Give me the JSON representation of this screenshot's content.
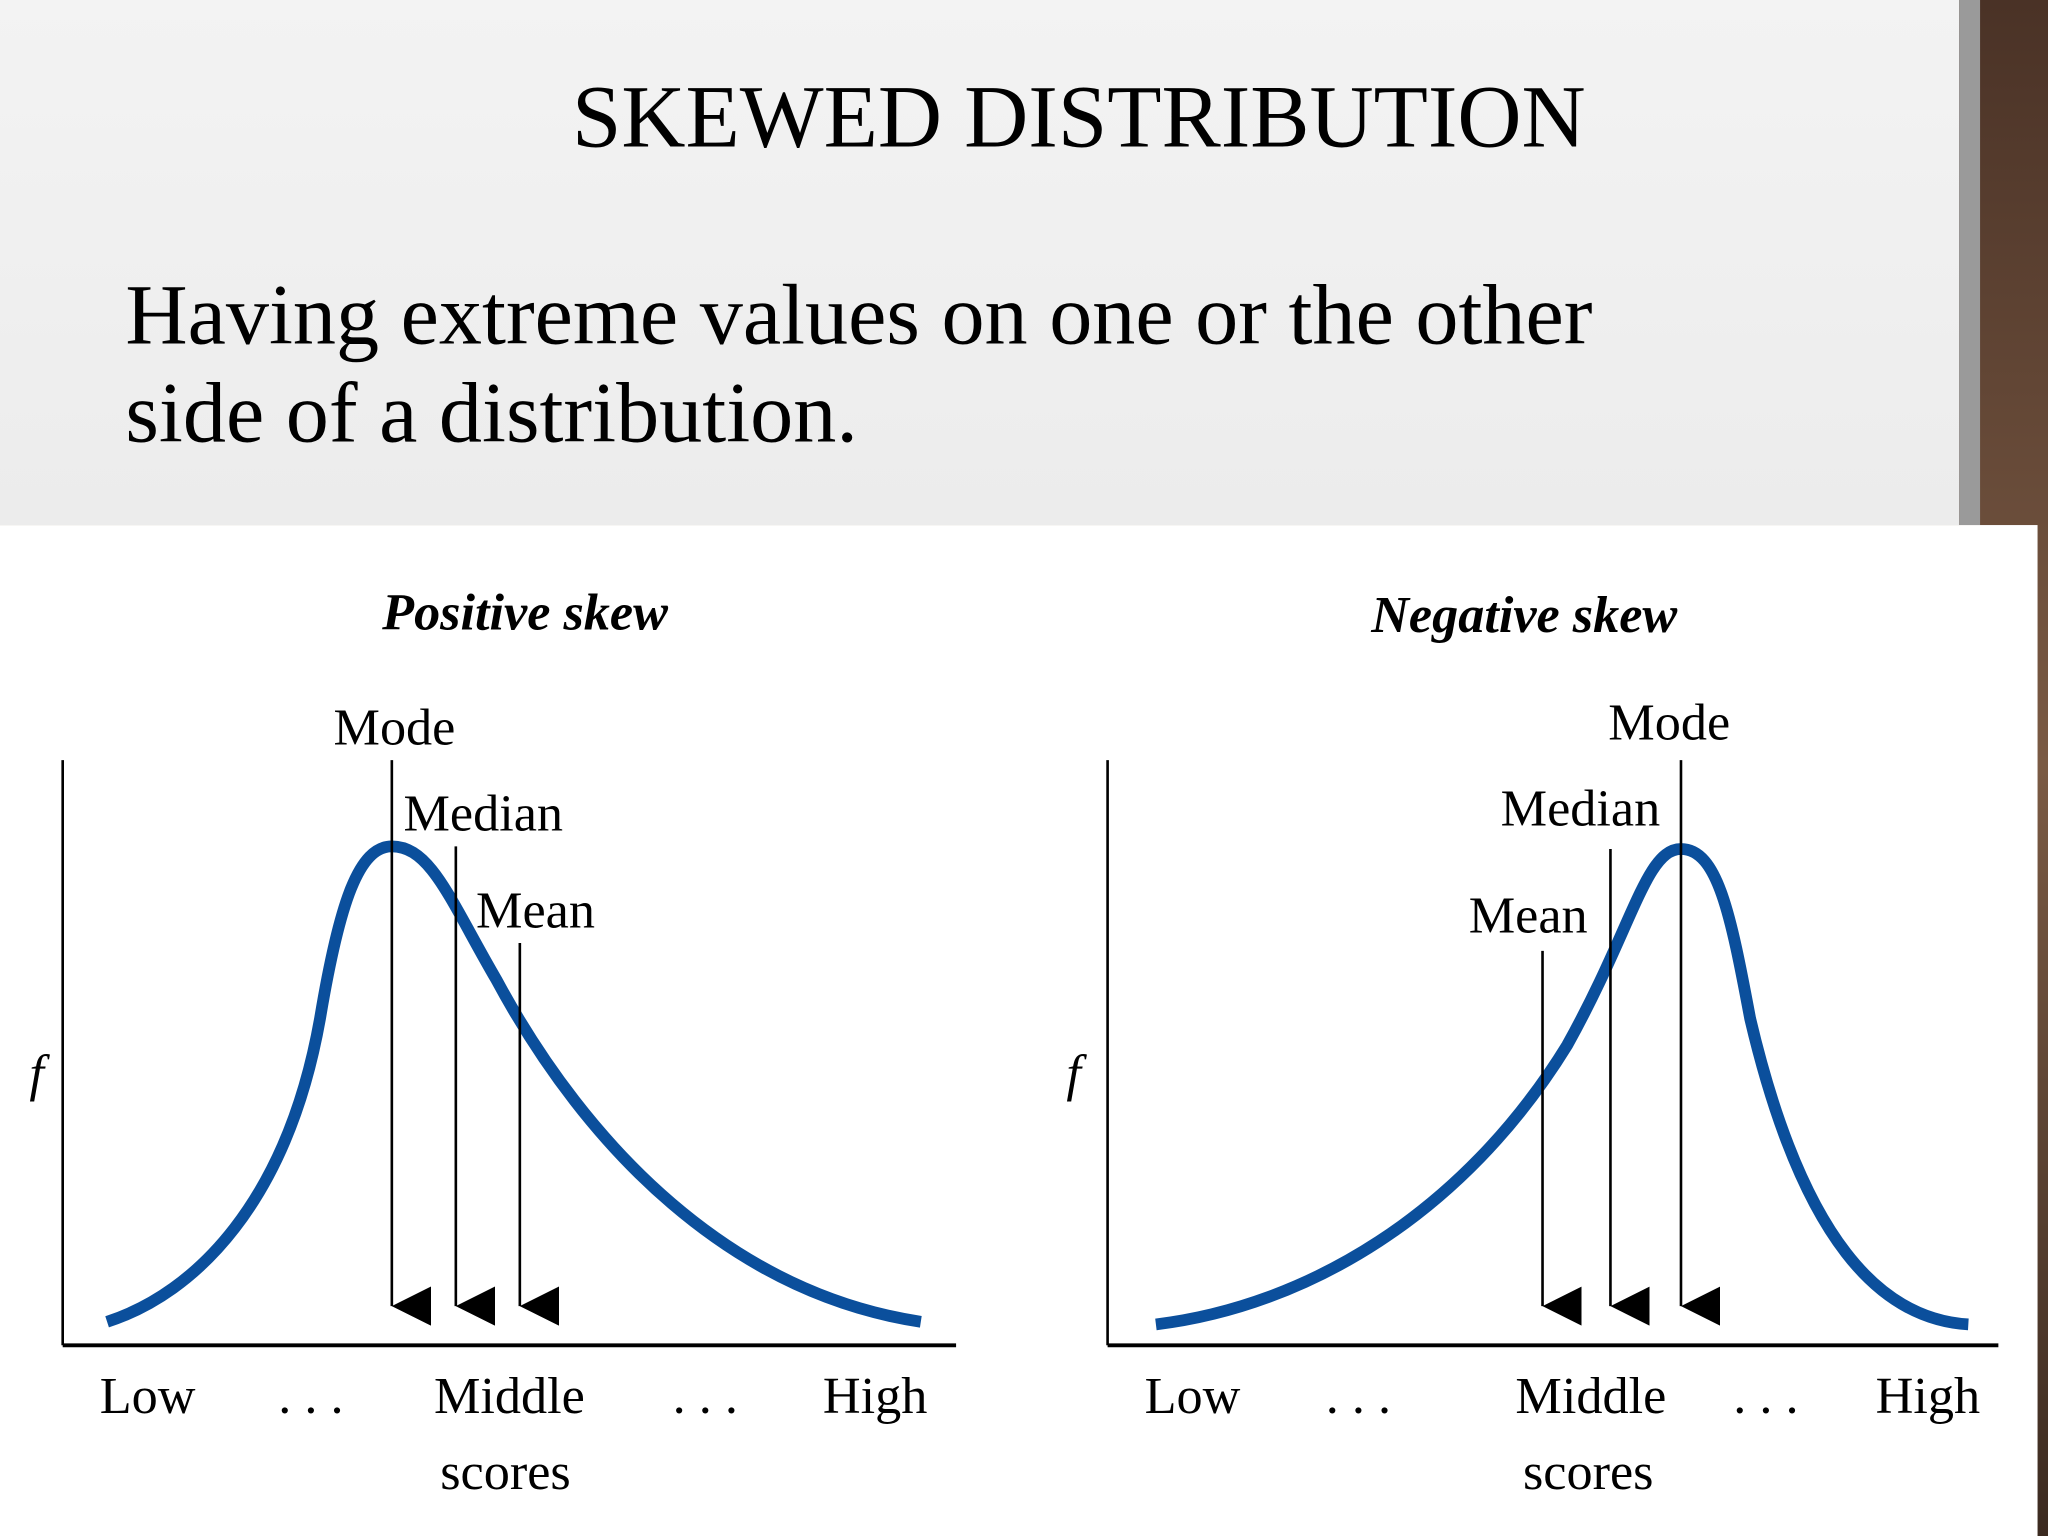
{
  "slide": {
    "title": "SKEWED DISTRIBUTION",
    "text_lines": [
      "Having extreme values on one or the other",
      "side of a distribution."
    ],
    "diagrams": [
      {
        "title": "Positive skew",
        "y_label": "f",
        "markers": [
          "Mode",
          "Median",
          "Mean"
        ],
        "x_labels": [
          "Low",
          ". . .",
          "Middle",
          ". . .",
          "High"
        ],
        "x_caption": "scores"
      },
      {
        "title": "Negative skew",
        "y_label": "f",
        "markers": [
          "Mode",
          "Median",
          "Mean"
        ],
        "x_labels": [
          "Low",
          ". . .",
          "Middle",
          ". . .",
          "High"
        ],
        "x_caption": "scores"
      }
    ]
  }
}
